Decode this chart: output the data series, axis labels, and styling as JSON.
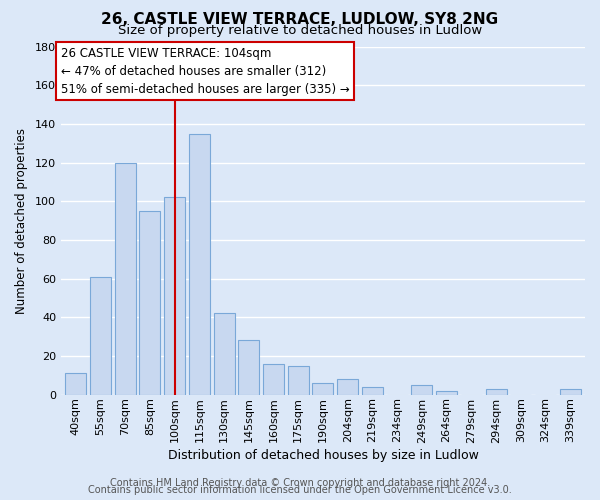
{
  "title": "26, CASTLE VIEW TERRACE, LUDLOW, SY8 2NG",
  "subtitle": "Size of property relative to detached houses in Ludlow",
  "xlabel": "Distribution of detached houses by size in Ludlow",
  "ylabel": "Number of detached properties",
  "categories": [
    "40sqm",
    "55sqm",
    "70sqm",
    "85sqm",
    "100sqm",
    "115sqm",
    "130sqm",
    "145sqm",
    "160sqm",
    "175sqm",
    "190sqm",
    "204sqm",
    "219sqm",
    "234sqm",
    "249sqm",
    "264sqm",
    "279sqm",
    "294sqm",
    "309sqm",
    "324sqm",
    "339sqm"
  ],
  "values": [
    11,
    61,
    120,
    95,
    102,
    135,
    42,
    28,
    16,
    15,
    6,
    8,
    4,
    0,
    5,
    2,
    0,
    3,
    0,
    0,
    3
  ],
  "bar_color": "#c8d8f0",
  "bar_edge_color": "#7aa8d8",
  "vline_index": 4,
  "vline_color": "#cc0000",
  "ylim": [
    0,
    180
  ],
  "yticks": [
    0,
    20,
    40,
    60,
    80,
    100,
    120,
    140,
    160,
    180
  ],
  "annotation_line1": "26 CASTLE VIEW TERRACE: 104sqm",
  "annotation_line2": "← 47% of detached houses are smaller (312)",
  "annotation_line3": "51% of semi-detached houses are larger (335) →",
  "footer_line1": "Contains HM Land Registry data © Crown copyright and database right 2024.",
  "footer_line2": "Contains public sector information licensed under the Open Government Licence v3.0.",
  "background_color": "#dce8f8",
  "plot_bg_color": "#dce8f8",
  "grid_color": "#ffffff",
  "title_fontsize": 11,
  "subtitle_fontsize": 9.5,
  "xlabel_fontsize": 9,
  "ylabel_fontsize": 8.5,
  "tick_fontsize": 8,
  "footer_fontsize": 7
}
